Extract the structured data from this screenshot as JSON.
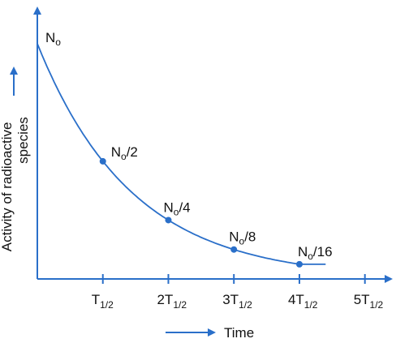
{
  "chart_data": {
    "type": "line",
    "title": "",
    "xlabel": "Time",
    "ylabel": "Activity of radioactive species",
    "x_ticks": [
      {
        "main": "T",
        "sub": "1/2"
      },
      {
        "main": "2T",
        "sub": "1/2"
      },
      {
        "main": "3T",
        "sub": "1/2"
      },
      {
        "main": "4T",
        "sub": "1/2"
      },
      {
        "main": "5T",
        "sub": "1/2"
      }
    ],
    "x_tick_values": [
      1,
      2,
      3,
      4,
      5
    ],
    "xlim": [
      0,
      5.4
    ],
    "ylim": [
      0,
      1.02
    ],
    "curve": {
      "x": [
        0,
        1,
        2,
        3,
        4,
        4.4
      ],
      "y": [
        1,
        0.5,
        0.25,
        0.125,
        0.0625,
        0.0625
      ]
    },
    "points": [
      {
        "x": 0,
        "y": 1,
        "marker": false,
        "label_main": "N",
        "label_sub": "o",
        "label_suffix": ""
      },
      {
        "x": 1,
        "y": 0.5,
        "marker": true,
        "label_main": "N",
        "label_sub": "o",
        "label_suffix": "/2"
      },
      {
        "x": 2,
        "y": 0.25,
        "marker": true,
        "label_main": "N",
        "label_sub": "o",
        "label_suffix": "/4"
      },
      {
        "x": 3,
        "y": 0.125,
        "marker": true,
        "label_main": "N",
        "label_sub": "o",
        "label_suffix": "/8"
      },
      {
        "x": 4,
        "y": 0.0625,
        "marker": true,
        "label_main": "N",
        "label_sub": "o",
        "label_suffix": "/16"
      }
    ],
    "grid": false,
    "legend": "none",
    "colors": {
      "curve": "#2a6fc9",
      "axis": "#2a6fc9",
      "text": "#111111"
    }
  }
}
